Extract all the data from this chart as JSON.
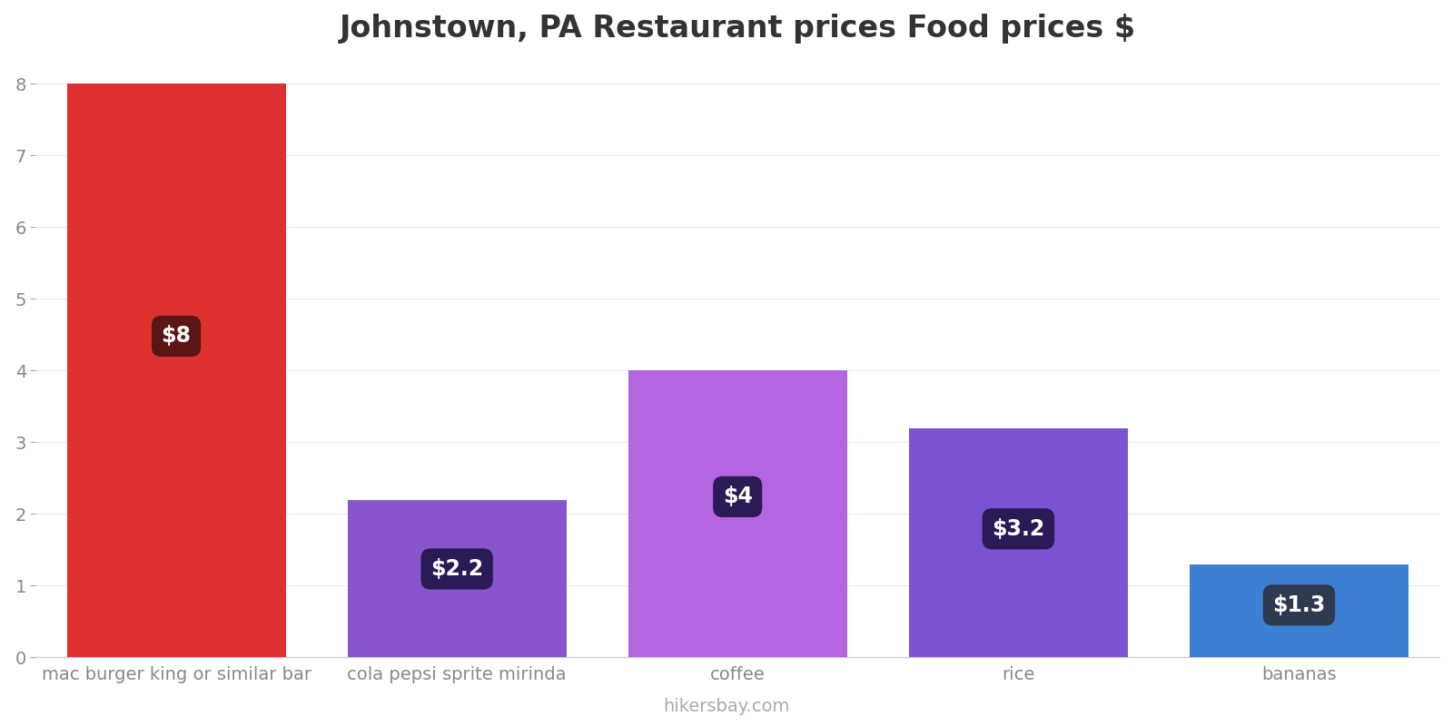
{
  "title": "Johnstown, PA Restaurant prices Food prices $",
  "categories": [
    "mac burger king or similar bar",
    "cola pepsi sprite mirinda",
    "coffee",
    "rice",
    "bananas"
  ],
  "values": [
    8,
    2.2,
    4,
    3.2,
    1.3
  ],
  "bar_colors": [
    "#e03131",
    "#8855cc",
    "#b366e0",
    "#7b52d4",
    "#3d7fd4"
  ],
  "label_texts": [
    "$8",
    "$2.2",
    "$4",
    "$3.2",
    "$1.3"
  ],
  "label_box_colors": [
    "#5a1515",
    "#2a1a55",
    "#2a1a55",
    "#2a1a55",
    "#2d3a50"
  ],
  "ylim": [
    0,
    8.3
  ],
  "yticks": [
    0,
    1,
    2,
    3,
    4,
    5,
    6,
    7,
    8
  ],
  "footer_text": "hikersbay.com",
  "title_fontsize": 24,
  "tick_fontsize": 14,
  "label_fontsize": 17,
  "footer_fontsize": 14,
  "background_color": "#ffffff",
  "bar_width": 0.78
}
